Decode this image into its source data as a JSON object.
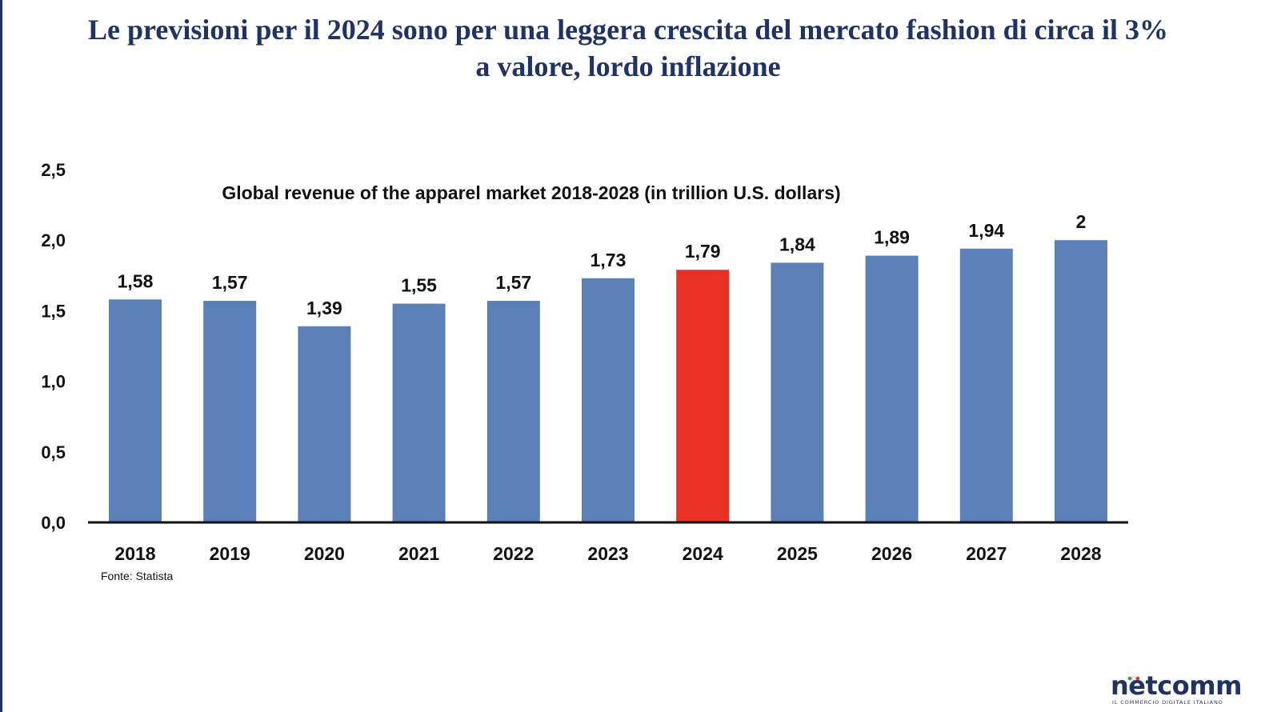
{
  "slide": {
    "title_line1": "Le previsioni per il 2024 sono per una leggera crescita del mercato fashion di circa il 3%",
    "title_line2": "a valore, lordo inflazione",
    "source": "Fonte: Statista"
  },
  "logo": {
    "wordmark": "nëtcomm",
    "tagline": "IL COMMERCIO DIGITALE ITALIANO"
  },
  "colors": {
    "title": "#1f3464",
    "bar": "#5b80b7",
    "highlight_bar": "#e83122",
    "axis": "#111111"
  },
  "chart_data": {
    "type": "bar",
    "title": "Global revenue of the apparel market 2018-2028 (in trillion U.S. dollars)",
    "categories": [
      "2018",
      "2019",
      "2020",
      "2021",
      "2022",
      "2023",
      "2024",
      "2025",
      "2026",
      "2027",
      "2028"
    ],
    "values": [
      1.58,
      1.57,
      1.39,
      1.55,
      1.57,
      1.73,
      1.79,
      1.84,
      1.89,
      1.94,
      2
    ],
    "value_labels": [
      "1,58",
      "1,57",
      "1,39",
      "1,55",
      "1,57",
      "1,73",
      "1,79",
      "1,84",
      "1,89",
      "1,94",
      "2"
    ],
    "highlight_category": "2024",
    "ylim": [
      0,
      2.5
    ],
    "yticks": [
      0,
      0.5,
      1.0,
      1.5,
      2.0,
      2.5
    ],
    "ytick_labels": [
      "0,0",
      "0,5",
      "1,0",
      "1,5",
      "2,0",
      "2,5"
    ],
    "grid": false,
    "xlabel": "",
    "ylabel": ""
  }
}
